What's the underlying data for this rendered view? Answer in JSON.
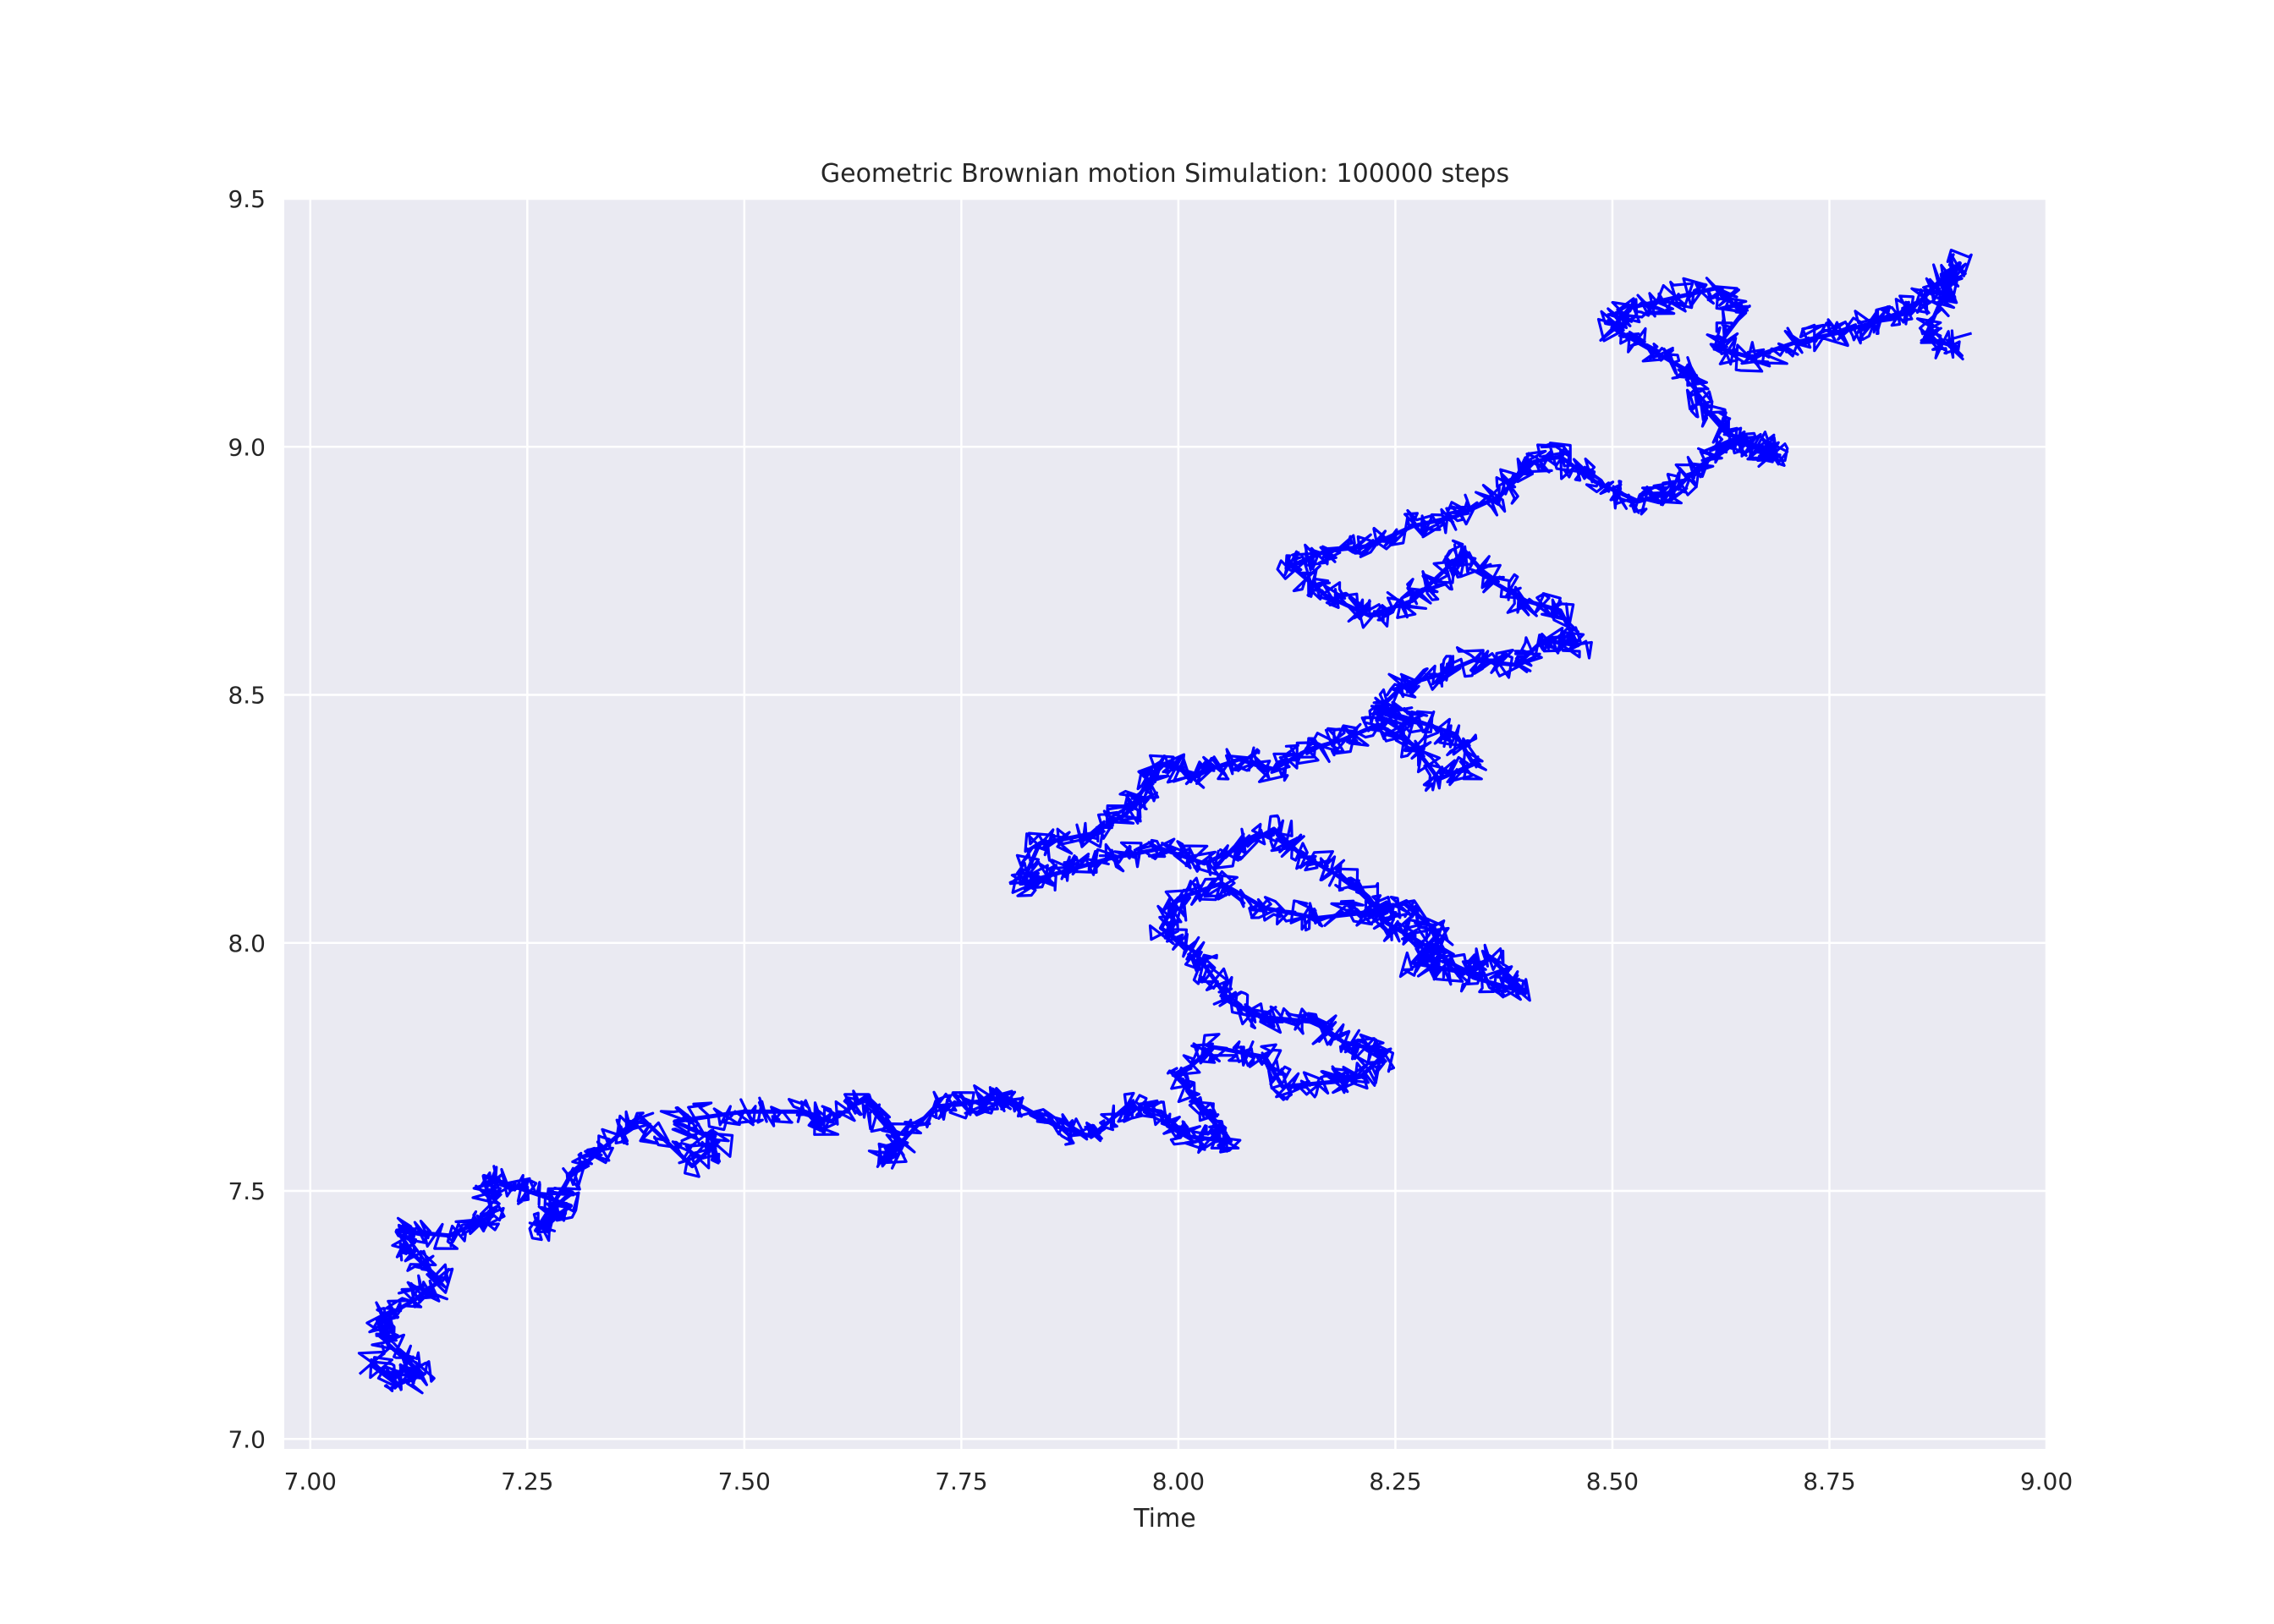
{
  "chart_data": {
    "type": "line",
    "title": "Geometric Brownian motion Simulation: 100000 steps",
    "xlabel": "Time",
    "ylabel": "",
    "xlim": [
      6.97,
      9.0
    ],
    "ylim": [
      6.98,
      9.5
    ],
    "x_ticks": [
      7.0,
      7.25,
      7.5,
      7.75,
      8.0,
      8.25,
      8.5,
      8.75,
      9.0
    ],
    "x_tick_labels": [
      "7.00",
      "7.25",
      "7.50",
      "7.75",
      "8.00",
      "8.25",
      "8.50",
      "8.75",
      "9.00"
    ],
    "y_ticks": [
      7.0,
      7.5,
      8.0,
      8.5,
      9.0,
      9.5
    ],
    "y_tick_labels": [
      "7.0",
      "7.5",
      "8.0",
      "8.5",
      "9.0",
      "9.5"
    ],
    "grid": true,
    "legend": "none",
    "colors": {
      "line": "#0000ff",
      "plot_background": "#eaeaf2",
      "grid": "#ffffff"
    },
    "series": [
      {
        "points": [
          [
            7.07,
            7.15
          ],
          [
            7.1,
            7.11
          ],
          [
            7.13,
            7.13
          ],
          [
            7.09,
            7.19
          ],
          [
            7.08,
            7.24
          ],
          [
            7.12,
            7.28
          ],
          [
            7.15,
            7.32
          ],
          [
            7.12,
            7.37
          ],
          [
            7.1,
            7.42
          ],
          [
            7.16,
            7.41
          ],
          [
            7.21,
            7.45
          ],
          [
            7.2,
            7.53
          ],
          [
            7.25,
            7.5
          ],
          [
            7.3,
            7.47
          ],
          [
            7.26,
            7.42
          ],
          [
            7.3,
            7.53
          ],
          [
            7.34,
            7.59
          ],
          [
            7.38,
            7.65
          ],
          [
            7.44,
            7.55
          ],
          [
            7.47,
            7.6
          ],
          [
            7.42,
            7.64
          ],
          [
            7.5,
            7.66
          ],
          [
            7.56,
            7.66
          ],
          [
            7.6,
            7.64
          ],
          [
            7.64,
            7.69
          ],
          [
            7.68,
            7.6
          ],
          [
            7.66,
            7.56
          ],
          [
            7.72,
            7.67
          ],
          [
            7.77,
            7.68
          ],
          [
            7.8,
            7.69
          ],
          [
            7.86,
            7.63
          ],
          [
            7.9,
            7.61
          ],
          [
            7.94,
            7.67
          ],
          [
            7.98,
            7.66
          ],
          [
            8.01,
            7.61
          ],
          [
            8.06,
            7.6
          ],
          [
            8.03,
            7.66
          ],
          [
            8.0,
            7.73
          ],
          [
            8.04,
            7.79
          ],
          [
            8.1,
            7.77
          ],
          [
            8.12,
            7.71
          ],
          [
            8.18,
            7.72
          ],
          [
            8.21,
            7.73
          ],
          [
            8.24,
            7.78
          ],
          [
            8.19,
            7.8
          ],
          [
            8.16,
            7.84
          ],
          [
            8.1,
            7.85
          ],
          [
            8.06,
            7.88
          ],
          [
            8.04,
            7.93
          ],
          [
            8.02,
            7.98
          ],
          [
            7.98,
            8.03
          ],
          [
            8.0,
            8.09
          ],
          [
            8.05,
            8.12
          ],
          [
            8.1,
            8.07
          ],
          [
            8.16,
            8.05
          ],
          [
            8.21,
            8.06
          ],
          [
            8.26,
            8.08
          ],
          [
            8.3,
            8.02
          ],
          [
            8.27,
            7.96
          ],
          [
            8.33,
            7.94
          ],
          [
            8.36,
            7.97
          ],
          [
            8.4,
            7.9
          ],
          [
            8.34,
            7.93
          ],
          [
            8.28,
            8.0
          ],
          [
            8.24,
            8.04
          ],
          [
            8.22,
            8.09
          ],
          [
            8.18,
            8.14
          ],
          [
            8.14,
            8.18
          ],
          [
            8.11,
            8.23
          ],
          [
            8.08,
            8.2
          ],
          [
            8.03,
            8.16
          ],
          [
            7.98,
            8.19
          ],
          [
            7.92,
            8.17
          ],
          [
            7.88,
            8.15
          ],
          [
            7.84,
            8.13
          ],
          [
            7.82,
            8.12
          ],
          [
            7.84,
            8.2
          ],
          [
            7.9,
            8.22
          ],
          [
            7.94,
            8.26
          ],
          [
            7.96,
            8.31
          ],
          [
            7.98,
            8.36
          ],
          [
            8.02,
            8.34
          ],
          [
            8.07,
            8.37
          ],
          [
            8.11,
            8.35
          ],
          [
            8.15,
            8.39
          ],
          [
            8.19,
            8.41
          ],
          [
            8.23,
            8.44
          ],
          [
            8.27,
            8.4
          ],
          [
            8.3,
            8.33
          ],
          [
            8.34,
            8.36
          ],
          [
            8.32,
            8.42
          ],
          [
            8.27,
            8.45
          ],
          [
            8.23,
            8.47
          ],
          [
            8.26,
            8.52
          ],
          [
            8.3,
            8.54
          ],
          [
            8.34,
            8.57
          ],
          [
            8.39,
            8.56
          ],
          [
            8.42,
            8.61
          ],
          [
            8.46,
            8.6
          ],
          [
            8.44,
            8.67
          ],
          [
            8.4,
            8.69
          ],
          [
            8.36,
            8.73
          ],
          [
            8.33,
            8.79
          ],
          [
            8.3,
            8.74
          ],
          [
            8.27,
            8.69
          ],
          [
            8.22,
            8.66
          ],
          [
            8.17,
            8.7
          ],
          [
            8.13,
            8.76
          ],
          [
            8.17,
            8.79
          ],
          [
            8.22,
            8.8
          ],
          [
            8.27,
            8.84
          ],
          [
            8.32,
            8.86
          ],
          [
            8.37,
            8.9
          ],
          [
            8.41,
            8.97
          ],
          [
            8.44,
            8.98
          ],
          [
            8.48,
            8.93
          ],
          [
            8.53,
            8.89
          ],
          [
            8.57,
            8.91
          ],
          [
            8.6,
            8.96
          ],
          [
            8.64,
            9.01
          ],
          [
            8.67,
            9.0
          ],
          [
            8.69,
            8.98
          ],
          [
            8.63,
            9.03
          ],
          [
            8.6,
            9.09
          ],
          [
            8.59,
            9.15
          ],
          [
            8.55,
            9.19
          ],
          [
            8.5,
            9.24
          ],
          [
            8.52,
            9.28
          ],
          [
            8.57,
            9.3
          ],
          [
            8.62,
            9.32
          ],
          [
            8.65,
            9.27
          ],
          [
            8.62,
            9.2
          ],
          [
            8.66,
            9.18
          ],
          [
            8.71,
            9.21
          ],
          [
            8.76,
            9.23
          ],
          [
            8.8,
            9.25
          ],
          [
            8.84,
            9.27
          ],
          [
            8.87,
            9.32
          ],
          [
            8.9,
            9.37
          ],
          [
            8.88,
            9.3
          ],
          [
            8.86,
            9.22
          ],
          [
            8.9,
            9.2
          ]
        ]
      }
    ]
  }
}
